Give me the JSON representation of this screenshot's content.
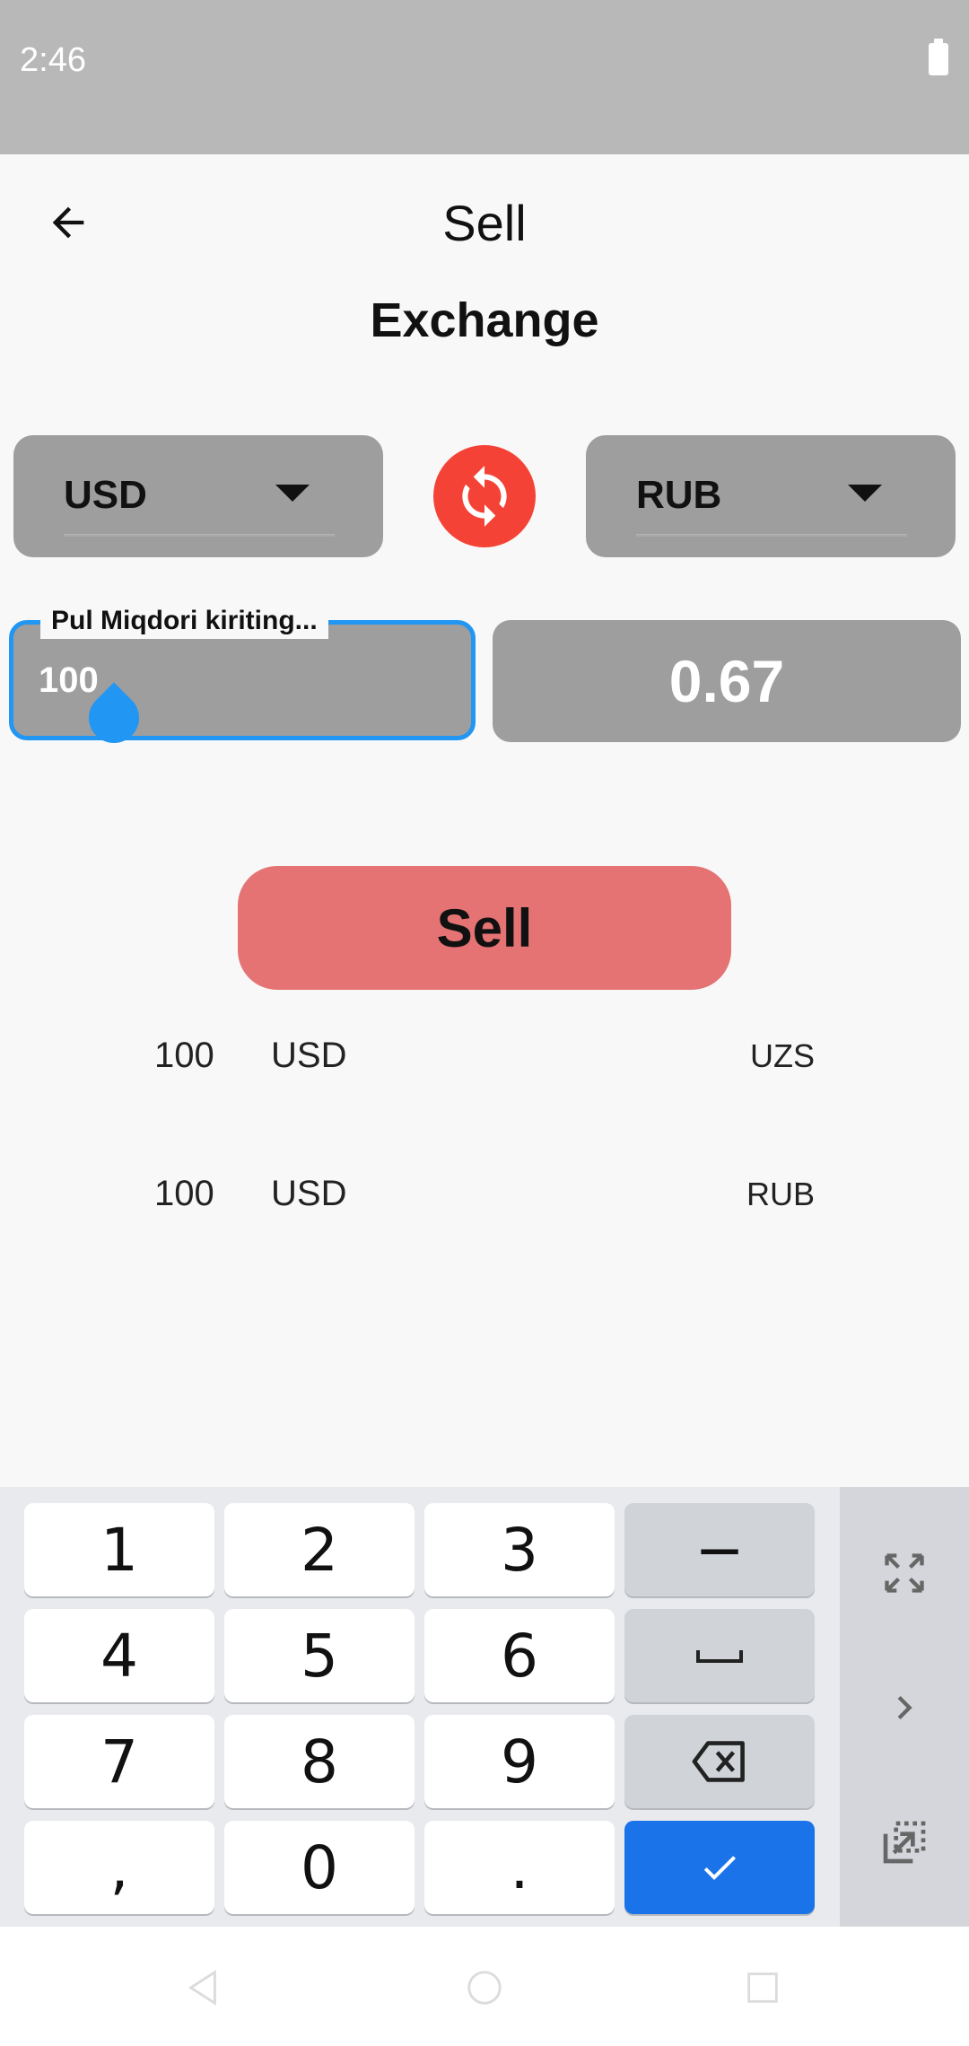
{
  "status_bar": {
    "time": "2:46",
    "battery_icon": "battery-icon"
  },
  "app_bar": {
    "title": "Sell",
    "back_icon": "arrow-left-icon"
  },
  "section_title": "Exchange",
  "converter": {
    "from_currency": "USD",
    "to_currency": "RUB",
    "swap_icon": "sync-icon",
    "swap_color": "#f44336",
    "amount_label": "Pul Miqdori kiriting...",
    "amount_value": "100",
    "result": "0.67",
    "accent_color": "#2196f3"
  },
  "sell_button": {
    "label": "Sell",
    "color": "#e57373"
  },
  "history": [
    {
      "amount": "100",
      "from": "USD",
      "to": "UZS"
    },
    {
      "amount": "100",
      "from": "USD",
      "to": "RUB"
    }
  ],
  "keyboard": {
    "rows": [
      [
        "1",
        "2",
        "3",
        "−"
      ],
      [
        "4",
        "5",
        "6",
        "␣"
      ],
      [
        "7",
        "8",
        "9",
        "⌫"
      ],
      [
        ",",
        "0",
        ".",
        "✓"
      ]
    ],
    "side_icons": [
      "fullscreen-icon",
      "chevron-right-icon",
      "popout-icon"
    ],
    "done_color": "#1a73e8"
  },
  "nav_bar": {
    "icons": [
      "nav-back-icon",
      "nav-home-icon",
      "nav-recents-icon"
    ]
  }
}
